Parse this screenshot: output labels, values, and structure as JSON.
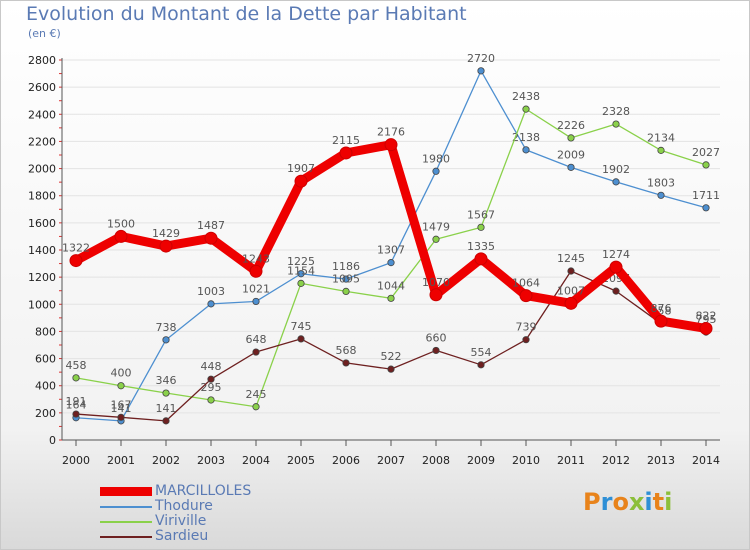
{
  "header": {
    "title": "Evolution du Montant de la Dette par Habitant",
    "subtitle": "(en €)"
  },
  "logo": {
    "letters": [
      {
        "ch": "P",
        "color": "#e8831b"
      },
      {
        "ch": "r",
        "color": "#2e8fd6"
      },
      {
        "ch": "o",
        "color": "#e8831b"
      },
      {
        "ch": "x",
        "color": "#8cbf3a"
      },
      {
        "ch": "i",
        "color": "#2e8fd6"
      },
      {
        "ch": "t",
        "color": "#e8831b"
      },
      {
        "ch": "i",
        "color": "#8cbf3a"
      }
    ]
  },
  "chart_data": {
    "type": "line",
    "title": "Evolution du Montant de la Dette par Habitant",
    "subtitle": "(en €)",
    "xlabel": "",
    "ylabel": "",
    "categories": [
      "2000",
      "2001",
      "2002",
      "2003",
      "2004",
      "2005",
      "2006",
      "2007",
      "2008",
      "2009",
      "2010",
      "2011",
      "2012",
      "2013",
      "2014"
    ],
    "ylim": [
      0,
      2800
    ],
    "yticks": [
      0,
      200,
      400,
      600,
      800,
      1000,
      1200,
      1400,
      1600,
      1800,
      2000,
      2200,
      2400,
      2600,
      2800
    ],
    "grid": true,
    "legend_position": "bottom-left",
    "series": [
      {
        "name": "MARCILLOLES",
        "color": "#ee0000",
        "bold": true,
        "values": [
          1322,
          1500,
          1429,
          1487,
          1243,
          1907,
          2115,
          2176,
          1070,
          1335,
          1064,
          1007,
          1274,
          876,
          822
        ]
      },
      {
        "name": "Thodure",
        "color": "#4d8fd0",
        "bold": false,
        "values": [
          164,
          141,
          738,
          1003,
          1021,
          1225,
          1186,
          1307,
          1980,
          2720,
          2138,
          2009,
          1902,
          1803,
          1711
        ]
      },
      {
        "name": "Viriville",
        "color": "#8ad14a",
        "bold": false,
        "values": [
          458,
          400,
          346,
          295,
          245,
          1154,
          1095,
          1044,
          1479,
          1567,
          2438,
          2226,
          2328,
          2134,
          2027
        ]
      },
      {
        "name": "Sardieu",
        "color": "#6e2020",
        "bold": false,
        "values": [
          191,
          167,
          141,
          448,
          648,
          745,
          568,
          522,
          660,
          554,
          739,
          1245,
          1097,
          858,
          795
        ]
      }
    ]
  }
}
